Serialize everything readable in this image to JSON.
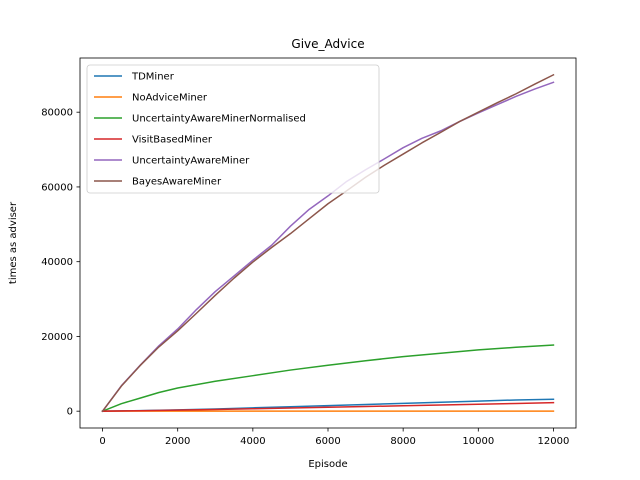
{
  "chart_data": {
    "type": "line",
    "title": "Give_Advice",
    "xlabel": "Episode",
    "ylabel": "times as adviser",
    "xlim": [
      -600,
      12600
    ],
    "ylim": [
      -4500,
      94500
    ],
    "xticks": [
      0,
      2000,
      4000,
      6000,
      8000,
      10000,
      12000
    ],
    "yticks": [
      0,
      20000,
      40000,
      60000,
      80000
    ],
    "grid": false,
    "legend_position": "top-left",
    "series": [
      {
        "name": "TDMiner",
        "color": "#1f77b4",
        "x": [
          0,
          1000,
          2000,
          3000,
          4000,
          5000,
          6000,
          7000,
          8000,
          9000,
          10000,
          11000,
          12000
        ],
        "y": [
          0,
          150,
          350,
          600,
          900,
          1200,
          1500,
          1800,
          2100,
          2400,
          2700,
          3000,
          3200
        ]
      },
      {
        "name": "NoAdviceMiner",
        "color": "#ff7f0e",
        "x": [
          0,
          1000,
          2000,
          3000,
          4000,
          5000,
          6000,
          7000,
          8000,
          9000,
          10000,
          11000,
          12000
        ],
        "y": [
          0,
          0,
          0,
          0,
          0,
          0,
          0,
          0,
          0,
          0,
          0,
          0,
          0
        ]
      },
      {
        "name": "UncertaintyAwareMinerNormalised",
        "color": "#2ca02c",
        "x": [
          0,
          500,
          1000,
          1500,
          2000,
          3000,
          4000,
          5000,
          6000,
          7000,
          8000,
          9000,
          10000,
          11000,
          12000
        ],
        "y": [
          0,
          2000,
          3500,
          5000,
          6200,
          8000,
          9500,
          11000,
          12300,
          13500,
          14600,
          15500,
          16400,
          17100,
          17700
        ]
      },
      {
        "name": "VisitBasedMiner",
        "color": "#d62728",
        "x": [
          0,
          1000,
          2000,
          3000,
          4000,
          5000,
          6000,
          7000,
          8000,
          9000,
          10000,
          11000,
          12000
        ],
        "y": [
          0,
          120,
          280,
          450,
          650,
          850,
          1050,
          1250,
          1450,
          1650,
          1850,
          2050,
          2300
        ]
      },
      {
        "name": "UncertaintyAwareMiner",
        "color": "#9467bd",
        "x": [
          0,
          500,
          1000,
          1500,
          2000,
          2500,
          3000,
          3500,
          4000,
          4500,
          5000,
          5500,
          6000,
          6500,
          7000,
          7500,
          8000,
          8500,
          9000,
          9500,
          10000,
          10500,
          11000,
          11500,
          12000
        ],
        "y": [
          0,
          6800,
          12300,
          17500,
          22000,
          27200,
          32000,
          36200,
          40400,
          44400,
          49500,
          54000,
          57600,
          61500,
          64600,
          67500,
          70500,
          73000,
          75000,
          77500,
          79800,
          82000,
          84200,
          86200,
          88000
        ]
      },
      {
        "name": "BayesAwareMiner",
        "color": "#8c564b",
        "x": [
          0,
          500,
          1000,
          1500,
          2000,
          2500,
          3000,
          3500,
          4000,
          4500,
          5000,
          5500,
          6000,
          6500,
          7000,
          7500,
          8000,
          8500,
          9000,
          9500,
          10000,
          10500,
          11000,
          11500,
          12000
        ],
        "y": [
          0,
          6700,
          12200,
          17200,
          21500,
          26200,
          31000,
          35600,
          39900,
          43800,
          47500,
          51500,
          55500,
          59000,
          62600,
          65800,
          68800,
          71800,
          74600,
          77500,
          80000,
          82500,
          84900,
          87500,
          90000
        ]
      }
    ]
  }
}
